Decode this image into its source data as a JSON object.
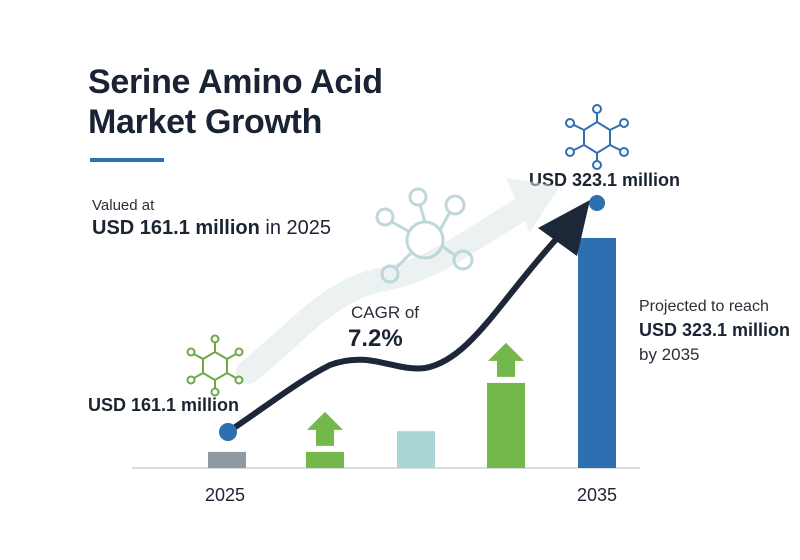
{
  "title": {
    "line1": "Serine Amino Acid",
    "line2": "Market Growth"
  },
  "valued": {
    "label": "Valued at",
    "value": "USD 161.1 million",
    "suffix": " in 2025"
  },
  "cagr": {
    "label": "CAGR of",
    "value": "7.2%"
  },
  "projected": {
    "label": "Projected to reach",
    "value": "USD 323.1 million",
    "suffix": "by 2035"
  },
  "chart_data": {
    "type": "bar",
    "x_tick_labels": [
      "2025",
      "2035"
    ],
    "start": {
      "year": "2025",
      "label": "USD 161.1 million",
      "value": 161.1
    },
    "end": {
      "year": "2035",
      "label": "USD 323.1 million",
      "value": 323.1
    },
    "bars": [
      {
        "name": "bar-2025",
        "level": 0.07,
        "color": "#8f9aa3",
        "arrow": false
      },
      {
        "name": "bar-2",
        "level": 0.07,
        "color": "#74b74a",
        "arrow": true
      },
      {
        "name": "bar-3",
        "level": 0.16,
        "color": "#a9d6d4",
        "arrow": false
      },
      {
        "name": "bar-4",
        "level": 0.37,
        "color": "#74b74a",
        "arrow": true
      },
      {
        "name": "bar-2035",
        "level": 1.0,
        "color": "#2d6fb0",
        "arrow": false
      }
    ],
    "trend_color": "#1c2738",
    "marker_color": "#2d6fb0",
    "grid": false
  },
  "icons": [
    "molecule-icon-left",
    "molecule-icon-center",
    "molecule-icon-top-right"
  ]
}
